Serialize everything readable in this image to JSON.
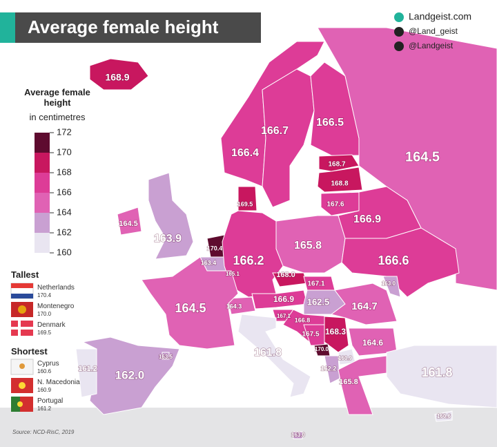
{
  "header": {
    "title": "Average female height",
    "credits": [
      "Landgeist.com",
      "@Land_geist",
      "@Landgeist"
    ]
  },
  "legend": {
    "title": "Average female height",
    "subtitle": "in centimetres",
    "ticks": [
      172,
      170,
      168,
      166,
      164,
      162,
      160
    ],
    "colors": [
      "#5e0b2f",
      "#c8175f",
      "#dd3c97",
      "#e062b4",
      "#c9a0d2",
      "#e9e5f1"
    ]
  },
  "tallest": {
    "heading": "Tallest",
    "names": [
      "Netherlands",
      "Montenegro",
      "Denmark"
    ],
    "values": [
      170.4,
      170,
      169.5
    ],
    "value_labels": [
      "170.4",
      "170.0",
      "169.5"
    ]
  },
  "shortest": {
    "heading": "Shortest",
    "names": [
      "Cyprus",
      "N. Macedonia",
      "Portugal"
    ],
    "values": [
      160.6,
      160.9,
      161.2
    ],
    "value_labels": [
      "160.6",
      "160.9",
      "161.2"
    ]
  },
  "map": {
    "values": [
      168.9,
      166.4,
      166.7,
      166.5,
      164.5,
      168.7,
      168.8,
      167.6,
      169.5,
      164.5,
      163.9,
      170.4,
      163.4,
      165.1,
      166.2,
      165.8,
      166.9,
      166.6,
      168,
      167.1,
      166.9,
      162.5,
      164.7,
      163,
      164.3,
      164.5,
      167.1,
      166.8,
      167.5,
      168.3,
      170,
      160.9,
      162.2,
      164.6,
      165.8,
      161.8,
      161.8,
      162,
      161.2,
      163.5,
      160.6,
      163
    ],
    "value_labels": [
      "168.9",
      "166.4",
      "166.7",
      "166.5",
      "164.5",
      "168.7",
      "168.8",
      "167.6",
      "169.5",
      "164.5",
      "163.9",
      "170.4",
      "163.4",
      "165.1",
      "166.2",
      "165.8",
      "166.9",
      "166.6",
      "168.0",
      "167.1",
      "166.9",
      "162.5",
      "164.7",
      "163.0",
      "164.3",
      "164.5",
      "167.1",
      "166.8",
      "167.5",
      "168.3",
      "170.0",
      "160.9",
      "162.2",
      "164.6",
      "165.8",
      "161.8",
      "161.8",
      "162.0",
      "161.2",
      "163.5",
      "160.6",
      "163.0"
    ]
  },
  "source": "Source: NCD-RisC, 2019"
}
